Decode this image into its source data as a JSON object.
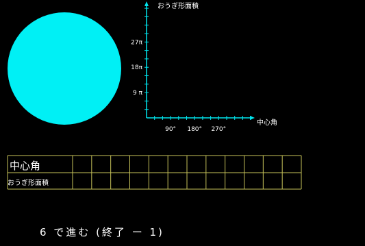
{
  "graph": {
    "y_axis_title": "おうぎ形面積",
    "x_axis_title": "中心角",
    "y_ticks": [
      {
        "value": 27,
        "label": "27π"
      },
      {
        "value": 18,
        "label": "18π"
      },
      {
        "value": 9,
        "label": "9 π"
      }
    ],
    "x_ticks": [
      {
        "value": 90,
        "label": "90°"
      },
      {
        "value": 180,
        "label": "180°"
      },
      {
        "value": 270,
        "label": "270°"
      }
    ]
  },
  "table": {
    "row1_label": "中心角",
    "row2_label": "おうぎ形面積",
    "column_count": 12
  },
  "prompt_text": "6 で進む (終了 ー 1)",
  "colors": {
    "background": "#000000",
    "circle": "#00f0f5",
    "axis": "#00e5ee",
    "grid": "#c8c45a",
    "text": "#ffffff"
  }
}
